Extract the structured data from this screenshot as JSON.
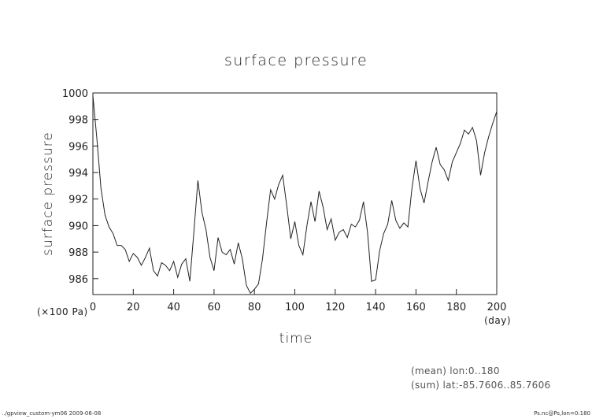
{
  "chart_data": {
    "type": "line",
    "title": "surface pressure",
    "xlabel": "time",
    "ylabel": "surface pressure",
    "x_unit": "(day)",
    "y_unit": "(×100 Pa)",
    "xlim": [
      0,
      200
    ],
    "ylim": [
      984.8,
      1000
    ],
    "x_ticks": [
      0,
      20,
      40,
      60,
      80,
      100,
      120,
      140,
      160,
      180,
      200
    ],
    "y_ticks": [
      986,
      988,
      990,
      992,
      994,
      996,
      998,
      1000
    ],
    "grid": false,
    "series": [
      {
        "x": [
          0,
          2,
          4,
          6,
          8,
          10,
          12,
          14,
          16,
          18,
          20,
          22,
          24,
          26,
          28,
          30,
          32,
          34,
          36,
          38,
          40,
          42,
          44,
          46,
          48,
          50,
          52,
          54,
          56,
          58,
          60,
          62,
          64,
          66,
          68,
          70,
          72,
          74,
          76,
          78,
          80,
          82,
          84,
          86,
          88,
          90,
          92,
          94,
          96,
          98,
          100,
          102,
          104,
          106,
          108,
          110,
          112,
          114,
          116,
          118,
          120,
          122,
          124,
          126,
          128,
          130,
          132,
          134,
          136,
          138,
          140,
          142,
          144,
          146,
          148,
          150,
          152,
          154,
          156,
          158,
          160,
          162,
          164,
          166,
          168,
          170,
          172,
          174,
          176,
          178,
          180,
          182,
          184,
          186,
          188,
          190,
          192,
          194,
          196,
          198,
          200
        ],
        "values": [
          999.8,
          996.5,
          992.8,
          990.8,
          989.9,
          989.4,
          988.5,
          988.5,
          988.2,
          987.3,
          987.9,
          987.6,
          987.0,
          987.6,
          988.3,
          986.6,
          986.2,
          987.2,
          987.0,
          986.6,
          987.3,
          986.1,
          987.1,
          987.5,
          985.8,
          989.5,
          993.4,
          991.0,
          989.7,
          987.6,
          986.6,
          989.1,
          988.0,
          987.8,
          988.2,
          987.1,
          988.7,
          987.5,
          985.5,
          984.9,
          985.2,
          985.6,
          987.5,
          990.2,
          992.7,
          992.0,
          993.1,
          993.8,
          991.5,
          989.0,
          990.3,
          988.5,
          987.8,
          990.0,
          991.8,
          990.3,
          992.6,
          991.4,
          989.7,
          990.5,
          988.9,
          989.5,
          989.7,
          989.1,
          990.1,
          989.9,
          990.4,
          991.8,
          989.5,
          985.8,
          985.9,
          988.1,
          989.4,
          990.1,
          991.9,
          990.4,
          989.8,
          990.2,
          989.9,
          992.8,
          994.9,
          992.8,
          991.7,
          993.3,
          994.8,
          995.9,
          994.6,
          994.2,
          993.4,
          994.8,
          995.5,
          996.2,
          997.2,
          996.9,
          997.4,
          996.4,
          993.8,
          995.5,
          996.7,
          997.7,
          998.6
        ]
      }
    ],
    "annotations": [
      "(mean) lon:0..180",
      "(sum) lat:-85.7606..85.7606"
    ]
  },
  "footer": {
    "left": "../gpview_custom-ym06   2009-06-08",
    "right": "Ps.nc@Ps,lon=0:180"
  }
}
